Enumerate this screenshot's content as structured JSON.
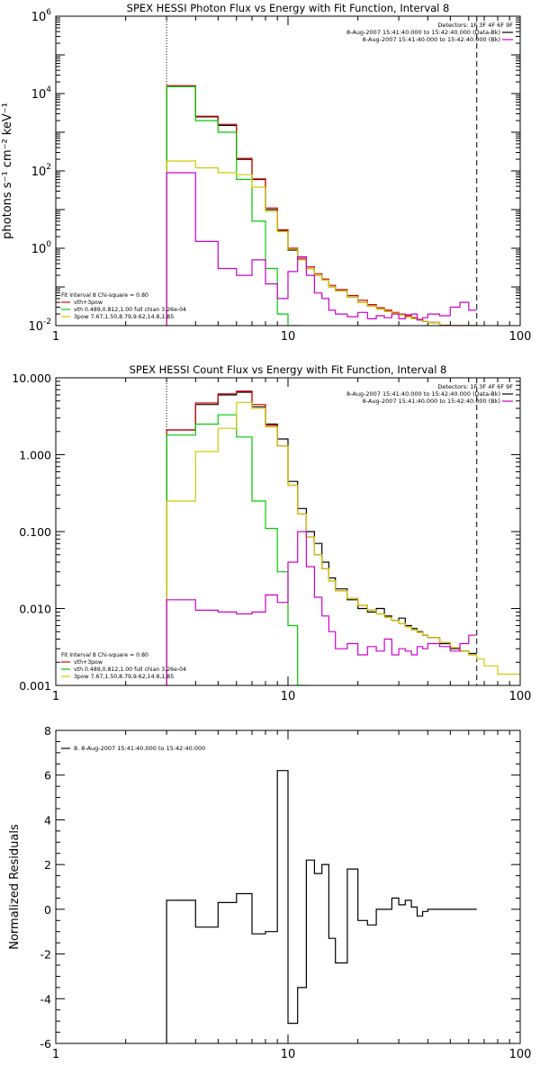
{
  "chart_data": [
    {
      "type": "line",
      "title": "SPEX HESSI Photon Flux vs Energy with Fit Function, Interval 8",
      "ylabel": "photons s⁻¹ cm⁻² keV⁻¹",
      "xlabel": "",
      "xscale": "log",
      "yscale": "log",
      "xlim": [
        1,
        100
      ],
      "ylim": [
        0.01,
        1000000
      ],
      "x_ticks": [
        "1",
        "10",
        "100"
      ],
      "y_ticks": [
        {
          "v": 0.01,
          "base": "10",
          "exp": "-2"
        },
        {
          "v": 1,
          "base": "10",
          "exp": "0"
        },
        {
          "v": 100,
          "base": "10",
          "exp": "2"
        },
        {
          "v": 10000,
          "base": "10",
          "exp": "4"
        },
        {
          "v": 1000000,
          "base": "10",
          "exp": "6"
        }
      ],
      "vlines": [
        {
          "x": 3,
          "style": "dotted"
        },
        {
          "x": 65,
          "style": "dashed"
        }
      ],
      "legend_right": [
        {
          "text": "Detectors: 1F 3F 4F 6F 9F",
          "color": ""
        },
        {
          "text": "8-Aug-2007 15:41:40.000 to 15:42:40.000 (Data-Bk)",
          "color": "#000000"
        },
        {
          "text": "8-Aug-2007 15:41:40.000 to 15:42:40.000 (Bk)",
          "color": "#cc00cc"
        }
      ],
      "legend_left": [
        {
          "text": "Fit Interval 8   Chi-square = 0.80",
          "color": ""
        },
        {
          "text": "vth+3pow",
          "color": "#dd0000"
        },
        {
          "text": "vth 0.489,0.812,1.00  full chian 3.26e-04",
          "color": "#00cc00"
        },
        {
          "text": "3pow 7.67,1.50,8.79,9.62,14.8,1.85",
          "color": "#cccc00"
        }
      ],
      "edges": [
        3,
        4,
        5,
        6,
        7,
        8,
        9,
        10,
        11,
        12,
        13,
        14,
        15,
        16,
        18,
        20,
        22,
        24,
        26,
        28,
        30,
        32,
        34,
        36,
        38,
        40,
        45,
        50,
        55,
        60,
        65,
        70,
        80,
        100
      ],
      "series": [
        {
          "key": "data",
          "color": "#000000",
          "start": 0,
          "values": [
            15000,
            2500,
            1500,
            200,
            60,
            10,
            2.8,
            0.9,
            0.5,
            0.3,
            0.2,
            0.15,
            0.1,
            0.08,
            0.055,
            0.04,
            0.032,
            0.027,
            0.023,
            0.021,
            0.019,
            0.017,
            0.015,
            0.014,
            0.013,
            0.012,
            0.01,
            0.008,
            0.007,
            0.006
          ]
        },
        {
          "key": "total_fit",
          "color": "#dd0000",
          "start": 0,
          "values": [
            16000,
            2600,
            1600,
            210,
            62,
            11,
            3,
            1,
            0.55,
            0.33,
            0.22,
            0.16,
            0.11,
            0.085,
            0.06,
            0.045,
            0.035,
            0.029,
            0.025,
            0.022,
            0.02,
            0.018,
            0.016,
            0.0145,
            0.013,
            0.0122,
            0.0102,
            0.0082,
            0.0071,
            0.0061
          ]
        },
        {
          "key": "thermal",
          "color": "#00cc00",
          "start": 0,
          "values": [
            15000,
            2000,
            1000,
            60,
            5,
            0.3,
            0.02,
            0.003
          ]
        },
        {
          "key": "powerlaw",
          "color": "#cccc00",
          "start": 0,
          "values": [
            180,
            120,
            90,
            80,
            38,
            9,
            2.7,
            0.95,
            0.5,
            0.3,
            0.2,
            0.15,
            0.1,
            0.08,
            0.055,
            0.04,
            0.032,
            0.027,
            0.023,
            0.021,
            0.019,
            0.017,
            0.015,
            0.014,
            0.013,
            0.012,
            0.01,
            0.008,
            0.007,
            0.006
          ]
        },
        {
          "key": "background",
          "color": "#cc00cc",
          "start": 0,
          "values": [
            90,
            1.5,
            0.3,
            0.2,
            0.5,
            0.12,
            0.05,
            0.25,
            0.6,
            0.2,
            0.07,
            0.05,
            0.025,
            0.02,
            0.017,
            0.022,
            0.015,
            0.018,
            0.016,
            0.02,
            0.015,
            0.019,
            0.02,
            0.014,
            0.016,
            0.02,
            0.018,
            0.03,
            0.04,
            0.025
          ]
        }
      ]
    },
    {
      "type": "line",
      "title": "SPEX HESSI Count Flux vs Energy with Fit Function, Interval 8",
      "ylabel": "",
      "xlabel": "",
      "xscale": "log",
      "yscale": "log",
      "xlim": [
        1,
        100
      ],
      "ylim": [
        0.001,
        10
      ],
      "x_ticks": [
        "1",
        "10",
        "100"
      ],
      "y_ticks": [
        {
          "v": 0.001,
          "label": "0.001"
        },
        {
          "v": 0.01,
          "label": "0.010"
        },
        {
          "v": 0.1,
          "label": "0.100"
        },
        {
          "v": 1,
          "label": "1.000"
        },
        {
          "v": 10,
          "label": "10.000"
        }
      ],
      "vlines": [
        {
          "x": 3,
          "style": "dotted"
        },
        {
          "x": 65,
          "style": "dashed"
        }
      ],
      "legend_right": [
        {
          "text": "Detectors: 1F 3F 4F 6F 9F",
          "color": ""
        },
        {
          "text": "8-Aug-2007 15:41:40.000 to 15:42:40.000 (Data-Bk)",
          "color": "#000000"
        },
        {
          "text": "8-Aug-2007 15:41:40.000 to 15:42:40.000 (Bk)",
          "color": "#cc00cc"
        }
      ],
      "legend_left": [
        {
          "text": "Fit Interval 8   Chi-square = 0.80",
          "color": ""
        },
        {
          "text": "vth+3pow",
          "color": "#dd0000"
        },
        {
          "text": "vth 0.489,0.812,1.00  full chian 3.26e-04",
          "color": "#00cc00"
        },
        {
          "text": "3pow 7.67,1.50,8.79,9.62,14.8,1.85",
          "color": "#cccc00"
        }
      ],
      "edges": [
        3,
        4,
        5,
        6,
        7,
        8,
        9,
        10,
        11,
        12,
        13,
        14,
        15,
        16,
        18,
        20,
        22,
        24,
        26,
        28,
        30,
        32,
        34,
        36,
        38,
        40,
        45,
        50,
        55,
        60,
        65,
        70,
        80,
        100
      ],
      "series": [
        {
          "key": "data",
          "color": "#000000",
          "start": 0,
          "values": [
            2.1,
            4.5,
            6.0,
            6.5,
            4.2,
            2.5,
            1.6,
            0.45,
            0.2,
            0.1,
            0.07,
            0.04,
            0.025,
            0.018,
            0.013,
            0.01,
            0.009,
            0.01,
            0.008,
            0.007,
            0.0075,
            0.006,
            0.0055,
            0.005,
            0.0045,
            0.0042,
            0.0035,
            0.003,
            0.0028,
            0.0026
          ]
        },
        {
          "key": "total_fit",
          "color": "#dd0000",
          "start": 0,
          "values": [
            2.1,
            4.7,
            6.2,
            6.7,
            4.5,
            2.4,
            1.3,
            0.4,
            0.17,
            0.085,
            0.05,
            0.033,
            0.023,
            0.017,
            0.0135,
            0.011,
            0.0095,
            0.0085,
            0.0077,
            0.007,
            0.0064,
            0.0058,
            0.0053,
            0.0049,
            0.0045,
            0.0042,
            0.0036,
            0.0031,
            0.0028,
            0.0025
          ]
        },
        {
          "key": "thermal",
          "color": "#00cc00",
          "start": 0,
          "values": [
            1.8,
            2.5,
            3.3,
            1.7,
            0.25,
            0.11,
            0.03,
            0.006,
            0.001
          ]
        },
        {
          "key": "powerlaw",
          "color": "#cccc00",
          "start": 0,
          "values": [
            0.25,
            1.1,
            2.2,
            4.8,
            4.0,
            2.3,
            1.3,
            0.4,
            0.17,
            0.085,
            0.05,
            0.033,
            0.023,
            0.017,
            0.0135,
            0.011,
            0.0095,
            0.0085,
            0.0077,
            0.007,
            0.0064,
            0.0058,
            0.0053,
            0.0049,
            0.0045,
            0.0042,
            0.0036,
            0.0031,
            0.0028,
            0.0025,
            0.0022,
            0.0018,
            0.0014
          ]
        },
        {
          "key": "background",
          "color": "#cc00cc",
          "start": 0,
          "values": [
            0.013,
            0.0095,
            0.009,
            0.0085,
            0.009,
            0.015,
            0.012,
            0.04,
            0.1,
            0.035,
            0.014,
            0.008,
            0.005,
            0.003,
            0.0035,
            0.0025,
            0.0032,
            0.0028,
            0.004,
            0.0025,
            0.003,
            0.0028,
            0.0025,
            0.0032,
            0.003,
            0.0035,
            0.0032,
            0.0028,
            0.0035,
            0.0045
          ]
        }
      ]
    },
    {
      "type": "line",
      "title": "",
      "ylabel": "Normalized Residuals",
      "xlabel": "",
      "xscale": "log",
      "yscale": "linear",
      "xlim": [
        1,
        100
      ],
      "ylim": [
        -6,
        8
      ],
      "x_ticks": [
        "1",
        "10",
        "100"
      ],
      "y_ticks": [
        {
          "v": -6,
          "label": "-6"
        },
        {
          "v": -4,
          "label": "-4"
        },
        {
          "v": -2,
          "label": "-2"
        },
        {
          "v": 0,
          "label": "0"
        },
        {
          "v": 2,
          "label": "2"
        },
        {
          "v": 4,
          "label": "4"
        },
        {
          "v": 6,
          "label": "6"
        },
        {
          "v": 8,
          "label": "8"
        }
      ],
      "legend_left": [
        {
          "text": "8.  8-Aug-2007 15:41:40.000 to 15:42:40.000",
          "color": "#000000"
        }
      ],
      "edges": [
        3,
        4,
        5,
        6,
        7,
        8,
        9,
        10,
        11,
        12,
        13,
        14,
        15,
        16,
        18,
        20,
        22,
        24,
        26,
        28,
        30,
        32,
        34,
        36,
        38,
        40,
        45,
        50,
        55,
        60,
        65
      ],
      "series": [
        {
          "key": "residuals",
          "color": "#000000",
          "start": 0,
          "values": [
            0.4,
            -0.8,
            0.3,
            0.7,
            -1.1,
            -1.0,
            6.2,
            -5.1,
            -3.5,
            2.2,
            1.6,
            2.0,
            -1.3,
            -2.4,
            1.8,
            -0.5,
            -0.7,
            0.0,
            0.0,
            0.5,
            0.2,
            0.4,
            0.1,
            -0.3,
            -0.1,
            0.0,
            0.0,
            0.0,
            0.0,
            0.0
          ]
        }
      ]
    }
  ]
}
